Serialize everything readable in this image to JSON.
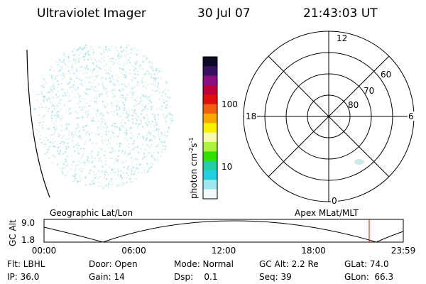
{
  "header": {
    "title": "Ultraviolet Imager",
    "date": "30 Jul 07",
    "time": "21:43:03 UT"
  },
  "colorbar": {
    "label": {
      "base": "photon cm",
      "exp1": "-2",
      "unit": "s",
      "exp2": "-1"
    },
    "ticks": [
      "100",
      "10"
    ]
  },
  "polar": {
    "mlt_labels": [
      "12",
      "18",
      "6",
      "0"
    ],
    "lat_labels": [
      "60",
      "70",
      "80"
    ]
  },
  "orbit": {
    "left_label": "Geographic Lat/Lon",
    "right_label": "Apex MLat/MLT",
    "y_label": "GC Alt",
    "y_ticks": [
      "9.0",
      "1.8"
    ],
    "x_ticks": [
      "00:00",
      "06:00",
      "12:00",
      "18:00",
      "23:59"
    ]
  },
  "footer": {
    "rows": [
      [
        "Flt: LBHL",
        "Door: Open",
        "Mode: Normal",
        "GC Alt: 2.2 Re",
        "GLat: 74.0"
      ],
      [
        "IP: 36.0",
        "Gain: 14",
        "Dsp:    0.1",
        "Seq: 39",
        "GLon:  66.3"
      ]
    ]
  }
}
